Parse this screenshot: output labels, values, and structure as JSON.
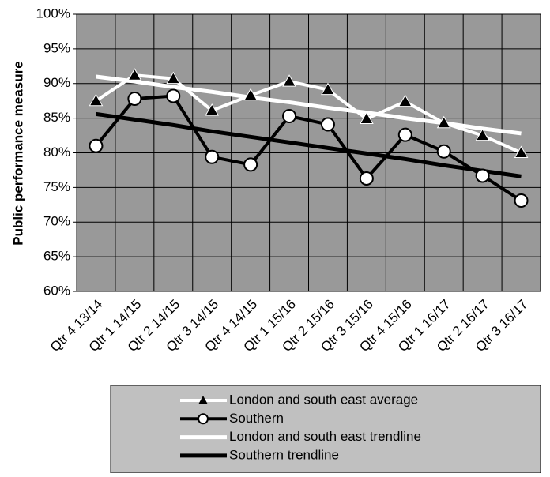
{
  "chart_data": {
    "type": "line",
    "y_label": "Public performance measure",
    "categories": [
      "Qtr 4 13/14",
      "Qtr 1 14/15",
      "Qtr 2 14/15",
      "Qtr 3 14/15",
      "Qtr 4 14/15",
      "Qtr 1 15/16",
      "Qtr 2 15/16",
      "Qtr 3 15/16",
      "Qtr 4 15/16",
      "Qtr 1 16/17",
      "Qtr 2 16/17",
      "Qtr 3 16/17"
    ],
    "series": [
      {
        "name": "London and south east average",
        "color": "#ffffff",
        "marker": "triangle",
        "values": [
          87.5,
          91.2,
          90.7,
          86.1,
          88.3,
          90.3,
          89.1,
          84.9,
          87.4,
          84.3,
          82.5,
          80.0
        ]
      },
      {
        "name": "Southern",
        "color": "#000000",
        "marker": "circle",
        "values": [
          81.0,
          87.8,
          88.2,
          79.4,
          78.3,
          85.3,
          84.1,
          76.3,
          82.6,
          80.2,
          76.7,
          73.1
        ]
      },
      {
        "name": "London and south east trendline",
        "color": "#ffffff",
        "values": [
          91.0,
          90.3,
          89.5,
          88.8,
          88.0,
          87.3,
          86.5,
          85.8,
          85.0,
          84.3,
          83.5,
          82.8
        ]
      },
      {
        "name": "Southern trendline",
        "color": "#000000",
        "values": [
          85.6,
          84.8,
          84.0,
          83.1,
          82.3,
          81.5,
          80.7,
          79.9,
          79.1,
          78.2,
          77.4,
          76.6
        ]
      }
    ],
    "ylim": [
      60,
      100
    ],
    "yticks": [
      {
        "value": 60,
        "label": "60%"
      },
      {
        "value": 65,
        "label": "65%"
      },
      {
        "value": 70,
        "label": "70%"
      },
      {
        "value": 75,
        "label": "75%"
      },
      {
        "value": 80,
        "label": "80%"
      },
      {
        "value": 85,
        "label": "85%"
      },
      {
        "value": 90,
        "label": "90%"
      },
      {
        "value": 95,
        "label": "95%"
      },
      {
        "value": 100,
        "label": "100%"
      }
    ],
    "grid": true,
    "plot_background": "#999999"
  }
}
